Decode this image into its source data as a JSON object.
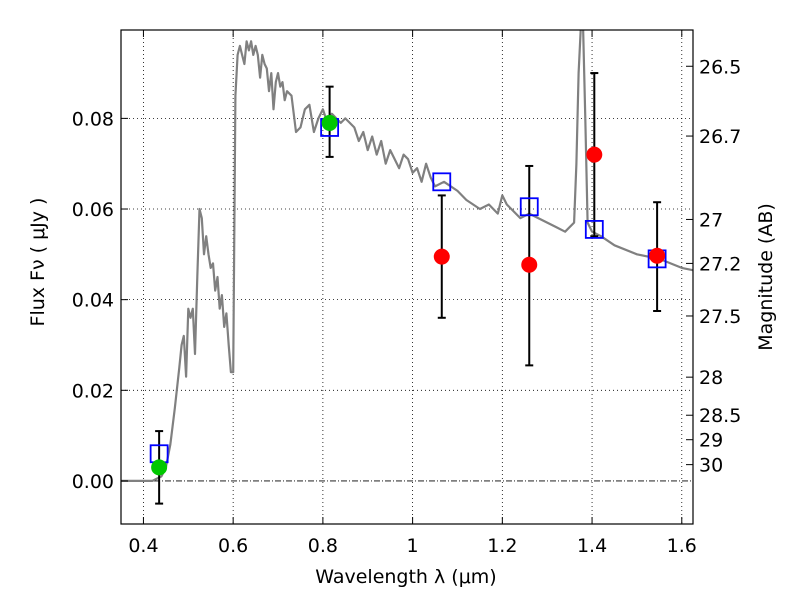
{
  "chart_data": {
    "type": "scatter",
    "xlabel": "Wavelength  λ (μm)",
    "ylabel": "Flux  Fν  ( μJy )",
    "y2label": "Magnitude (AB)",
    "xlim": [
      0.35,
      1.625
    ],
    "ylim": [
      -0.0095,
      0.0995
    ],
    "grid": true,
    "x_ticks": [
      {
        "value": 0.4,
        "label": "0.4"
      },
      {
        "value": 0.6,
        "label": "0.6"
      },
      {
        "value": 0.8,
        "label": "0.8"
      },
      {
        "value": 1.0,
        "label": "1"
      },
      {
        "value": 1.2,
        "label": "1.2"
      },
      {
        "value": 1.4,
        "label": "1.4"
      },
      {
        "value": 1.6,
        "label": "1.6"
      }
    ],
    "y_ticks": [
      {
        "value": 0.0,
        "label": "0.00"
      },
      {
        "value": 0.02,
        "label": "0.02"
      },
      {
        "value": 0.04,
        "label": "0.04"
      },
      {
        "value": 0.06,
        "label": "0.06"
      },
      {
        "value": 0.08,
        "label": "0.08"
      }
    ],
    "y2_ticks": [
      {
        "label": "26.5",
        "flux": 0.0915
      },
      {
        "label": "26.7",
        "flux": 0.0761
      },
      {
        "label": "27",
        "flux": 0.0577
      },
      {
        "label": "27.2",
        "flux": 0.048
      },
      {
        "label": "27.5",
        "flux": 0.0364
      },
      {
        "label": "28",
        "flux": 0.0229
      },
      {
        "label": "28.5",
        "flux": 0.0145
      },
      {
        "label": "29",
        "flux": 0.0091
      },
      {
        "label": "30",
        "flux": 0.0036
      }
    ],
    "series": [
      {
        "kind": "line",
        "color": "#808080",
        "x": [
          0.35,
          0.4,
          0.42,
          0.44,
          0.45,
          0.46,
          0.47,
          0.48,
          0.485,
          0.49,
          0.495,
          0.5,
          0.505,
          0.51,
          0.515,
          0.52,
          0.525,
          0.53,
          0.535,
          0.54,
          0.545,
          0.55,
          0.555,
          0.56,
          0.565,
          0.57,
          0.575,
          0.58,
          0.585,
          0.59,
          0.595,
          0.6,
          0.605,
          0.61,
          0.615,
          0.62,
          0.625,
          0.63,
          0.635,
          0.64,
          0.645,
          0.65,
          0.655,
          0.66,
          0.665,
          0.67,
          0.675,
          0.68,
          0.685,
          0.69,
          0.695,
          0.7,
          0.705,
          0.71,
          0.715,
          0.72,
          0.73,
          0.74,
          0.75,
          0.76,
          0.77,
          0.78,
          0.79,
          0.8,
          0.81,
          0.82,
          0.83,
          0.84,
          0.85,
          0.86,
          0.87,
          0.88,
          0.89,
          0.9,
          0.91,
          0.92,
          0.93,
          0.94,
          0.95,
          0.96,
          0.97,
          0.98,
          0.99,
          1.0,
          1.01,
          1.02,
          1.03,
          1.04,
          1.05,
          1.07,
          1.1,
          1.12,
          1.15,
          1.17,
          1.19,
          1.2,
          1.21,
          1.22,
          1.24,
          1.26,
          1.28,
          1.3,
          1.32,
          1.34,
          1.36,
          1.365,
          1.37,
          1.375,
          1.38,
          1.385,
          1.39,
          1.4,
          1.42,
          1.45,
          1.5,
          1.55,
          1.6,
          1.625
        ],
        "y": [
          0.0,
          0.0,
          0.0,
          0.001,
          0.003,
          0.008,
          0.016,
          0.025,
          0.03,
          0.032,
          0.023,
          0.038,
          0.036,
          0.038,
          0.028,
          0.045,
          0.06,
          0.058,
          0.05,
          0.054,
          0.05,
          0.047,
          0.048,
          0.042,
          0.045,
          0.038,
          0.041,
          0.034,
          0.037,
          0.03,
          0.024,
          0.024,
          0.085,
          0.094,
          0.096,
          0.094,
          0.092,
          0.097,
          0.095,
          0.097,
          0.094,
          0.096,
          0.094,
          0.089,
          0.094,
          0.092,
          0.091,
          0.086,
          0.09,
          0.082,
          0.088,
          0.09,
          0.087,
          0.088,
          0.084,
          0.086,
          0.085,
          0.077,
          0.078,
          0.082,
          0.083,
          0.077,
          0.08,
          0.082,
          0.079,
          0.081,
          0.08,
          0.079,
          0.08,
          0.079,
          0.078,
          0.075,
          0.077,
          0.073,
          0.076,
          0.072,
          0.075,
          0.07,
          0.073,
          0.071,
          0.069,
          0.072,
          0.071,
          0.068,
          0.069,
          0.066,
          0.07,
          0.067,
          0.065,
          0.066,
          0.064,
          0.062,
          0.06,
          0.061,
          0.059,
          0.063,
          0.061,
          0.06,
          0.058,
          0.059,
          0.058,
          0.057,
          0.056,
          0.055,
          0.057,
          0.07,
          0.09,
          0.1,
          0.1,
          0.08,
          0.057,
          0.055,
          0.054,
          0.052,
          0.05,
          0.049,
          0.047,
          0.0465
        ]
      },
      {
        "kind": "points",
        "marker": "open-square",
        "color": "#0000ff",
        "x": [
          0.435,
          0.815,
          1.065,
          1.26,
          1.405,
          1.545
        ],
        "y": [
          0.006,
          0.078,
          0.066,
          0.0605,
          0.0555,
          0.049
        ]
      },
      {
        "kind": "points",
        "marker": "filled-circle",
        "color": "#00c800",
        "x": [
          0.435,
          0.815
        ],
        "y": [
          0.003,
          0.079
        ]
      },
      {
        "kind": "points",
        "marker": "filled-circle",
        "color": "#ff0000",
        "x": [
          1.065,
          1.26,
          1.405,
          1.545
        ],
        "y": [
          0.0495,
          0.0477,
          0.072,
          0.0497
        ]
      },
      {
        "kind": "errorbars",
        "color": "#000000",
        "points": [
          {
            "x": 0.435,
            "y": 0.003,
            "low": -0.005,
            "high": 0.011
          },
          {
            "x": 0.815,
            "y": 0.079,
            "low": 0.0715,
            "high": 0.087
          },
          {
            "x": 1.065,
            "y": 0.0495,
            "low": 0.036,
            "high": 0.063
          },
          {
            "x": 1.26,
            "y": 0.0477,
            "low": 0.0255,
            "high": 0.0695
          },
          {
            "x": 1.405,
            "y": 0.072,
            "low": 0.054,
            "high": 0.09
          },
          {
            "x": 1.545,
            "y": 0.0497,
            "low": 0.0375,
            "high": 0.0615
          }
        ]
      }
    ],
    "zero_line": {
      "value": 0.0,
      "color": "#000000"
    }
  }
}
